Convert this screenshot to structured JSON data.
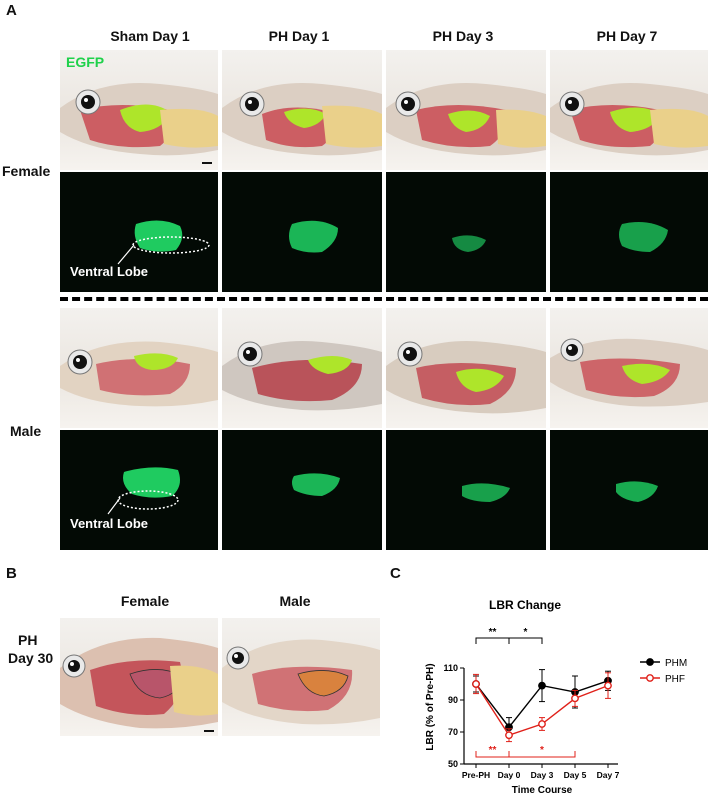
{
  "panel_a": {
    "letter": "A",
    "columns": [
      "Sham Day 1",
      "PH Day 1",
      "PH Day 3",
      "PH Day 7"
    ],
    "rows": {
      "female": "Female",
      "male": "Male"
    },
    "egfp_label": "EGFP",
    "ventral_lobe": "Ventral Lobe"
  },
  "panel_b": {
    "letter": "B",
    "columns": [
      "Female",
      "Male"
    ],
    "row_label_line1": "PH",
    "row_label_line2": "Day 30"
  },
  "panel_c": {
    "letter": "C",
    "chart_data": {
      "type": "line",
      "title": "LBR Change",
      "xlabel": "Time Course",
      "ylabel": "LBR (% of Pre-PH)",
      "categories": [
        "Pre-PH",
        "Day 0",
        "Day 3",
        "Day 5",
        "Day 7"
      ],
      "ylim": [
        50,
        110
      ],
      "yticks": [
        50,
        70,
        90,
        110
      ],
      "legend_position": "right",
      "series": [
        {
          "name": "PHM",
          "color": "#000000",
          "marker": "filled",
          "values": [
            100,
            73,
            99,
            95,
            102
          ],
          "errors": [
            5,
            6,
            10,
            10,
            6
          ]
        },
        {
          "name": "PHF",
          "color": "#e0211a",
          "marker": "open",
          "values": [
            100,
            68,
            75,
            91,
            99
          ],
          "errors": [
            6,
            4,
            4,
            5,
            8
          ]
        }
      ],
      "annotations": {
        "top": [
          {
            "from": "Pre-PH",
            "to": "Day 0",
            "label": "**"
          },
          {
            "from": "Day 0",
            "to": "Day 3",
            "label": "*"
          }
        ],
        "bottom": [
          {
            "from": "Pre-PH",
            "to": "Day 0",
            "label": "**"
          },
          {
            "from": "Day 0",
            "to": "Day 5",
            "label": "*"
          }
        ]
      }
    }
  }
}
